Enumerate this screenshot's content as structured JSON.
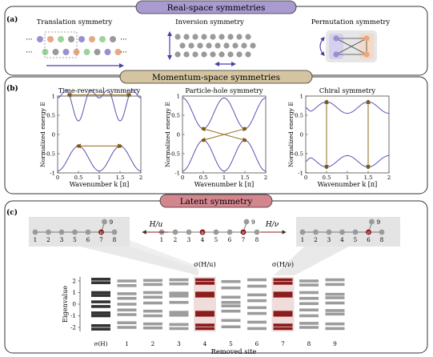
{
  "banners": {
    "real": "Real-space symmetries",
    "momentum": "Momentum-space symmetries",
    "latent": "Latent symmetry"
  },
  "panel_labels": {
    "a": "(a)",
    "b": "(b)",
    "c": "(c)"
  },
  "panel_a": {
    "translation": "Translation symmetry",
    "inversion": "Inversion symmetry",
    "permutation": "Permutation symmetry",
    "dots": "···"
  },
  "panel_b": {
    "titles": [
      "Time-reversal symmetry",
      "Particle-hole symmetry",
      "Chiral symmetry"
    ],
    "xlabel": "Wavenumber k [π]",
    "ylabel": "Normalized energy E",
    "xticks": [
      "0",
      "0.5",
      "1",
      "1.5",
      "2"
    ],
    "yticks": [
      "1",
      "0.5",
      "0",
      "-0.5",
      "-1"
    ]
  },
  "panel_c": {
    "op_u": "H/u",
    "op_v": "H/ν",
    "left_sites": [
      "1",
      "2",
      "3",
      "5",
      "6",
      "7",
      "8",
      "9"
    ],
    "mid_sites": [
      "1",
      "2",
      "3",
      "4",
      "5",
      "6",
      "7",
      "8",
      "9"
    ],
    "right_sites": [
      "1",
      "2",
      "3",
      "4",
      "5",
      "6",
      "8",
      "9"
    ],
    "highlight_u": "u",
    "highlight_v": "ν",
    "sigma_u": "σ(H/u)",
    "sigma_v": "σ(H/ν)",
    "ylabel": "Eigenvalue",
    "yticks": [
      "2",
      "1",
      "0",
      "-1",
      "-2"
    ],
    "xlabel": "Removed site",
    "xticks": [
      "σ(H)",
      "1",
      "2",
      "3",
      "4",
      "5",
      "6",
      "7",
      "8",
      "9"
    ]
  },
  "colors": {
    "banner_real": "#a99ad0",
    "banner_momentum": "#d4c4a0",
    "banner_latent": "#d4868f",
    "band_line": "#5b53b3",
    "arrow": "#8f6a1c",
    "highlight": "#8b1a1a",
    "gray": "#9a9a9a"
  }
}
